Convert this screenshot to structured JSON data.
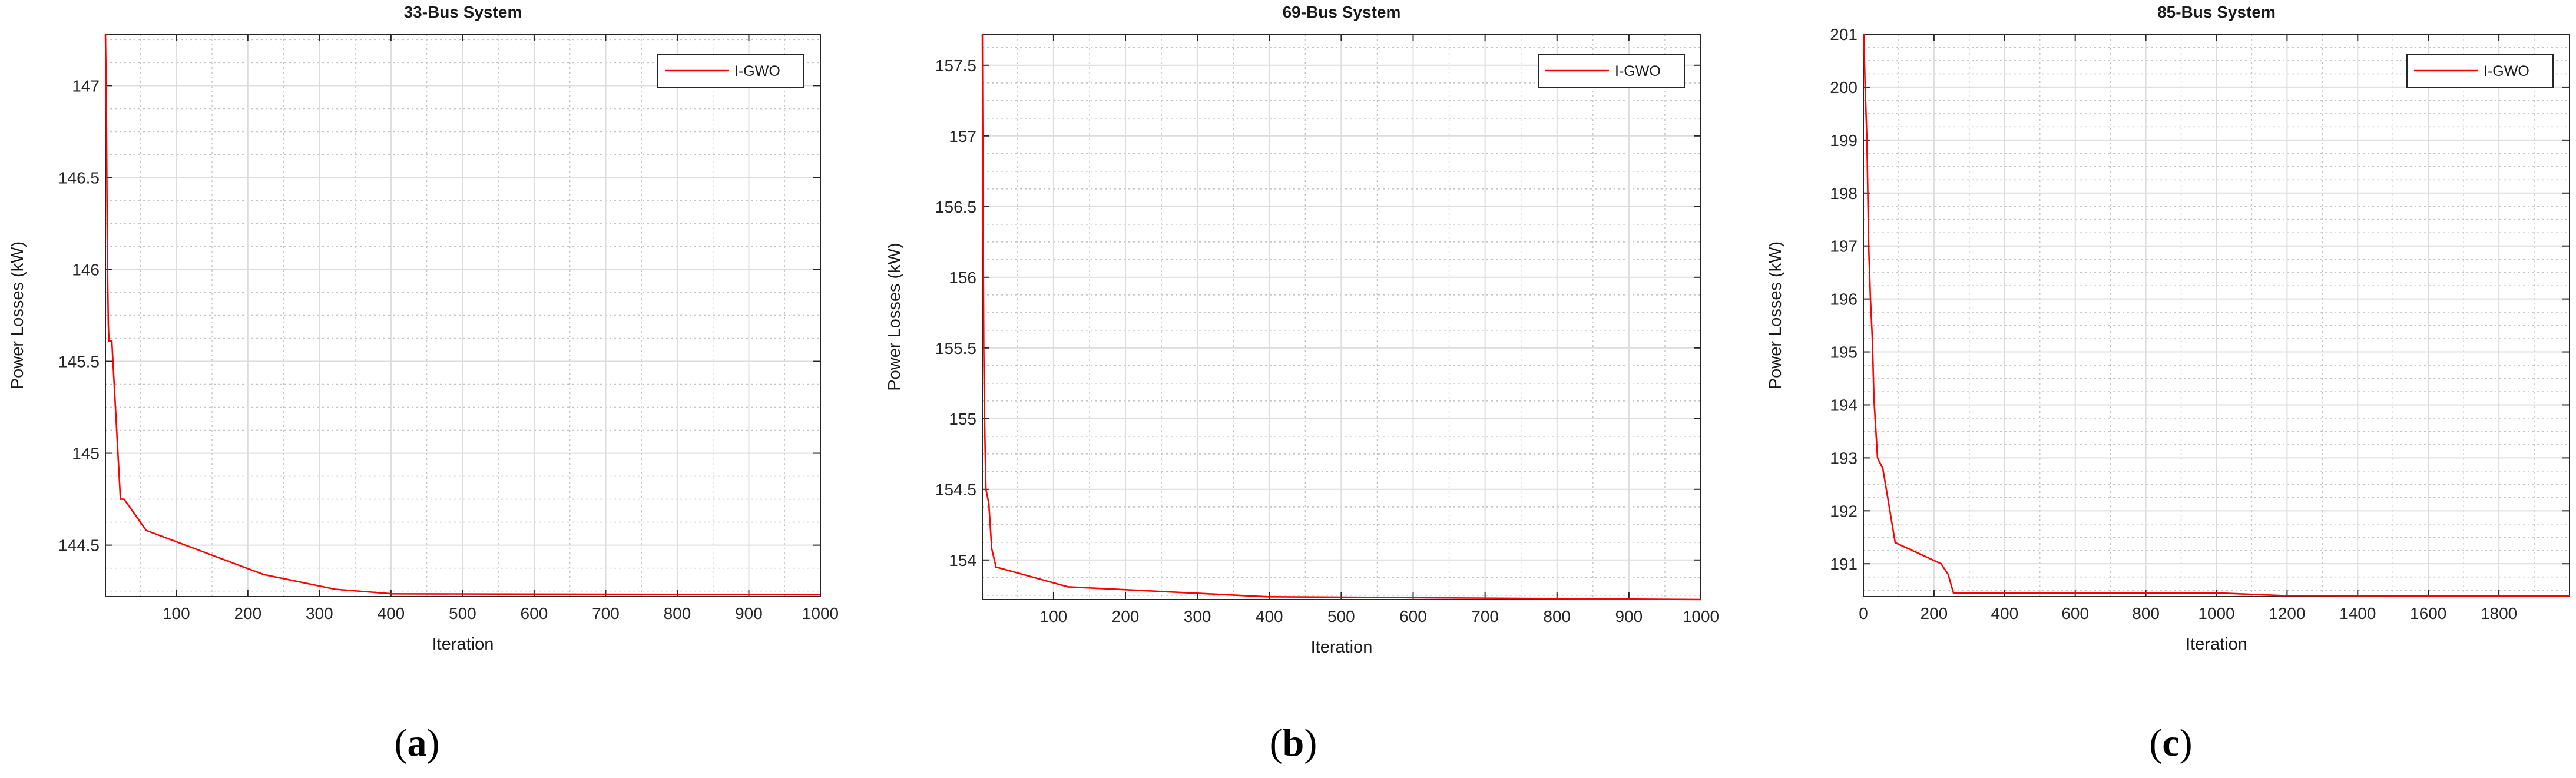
{
  "colors": {
    "series": "#ff0000",
    "grid_major": "#dcdcdc",
    "grid_minor": "#c4c4c4",
    "axis": "#262626"
  },
  "chart_data": [
    {
      "type": "line",
      "panel_label": "a",
      "title": "33-Bus System",
      "xlabel": "Iteration",
      "ylabel": "Power Losses (kW)",
      "xlim": [
        1,
        1000
      ],
      "ylim": [
        144.22,
        147.28
      ],
      "xticks": [
        100,
        200,
        300,
        400,
        500,
        600,
        700,
        800,
        900,
        1000
      ],
      "xtick_labels": [
        "100",
        "200",
        "300",
        "400",
        "500",
        "600",
        "700",
        "800",
        "900",
        "1000"
      ],
      "yticks": [
        144.5,
        145,
        145.5,
        146,
        146.5,
        147
      ],
      "ytick_labels": [
        "144.5",
        "145",
        "145.5",
        "146",
        "146.5",
        "147"
      ],
      "grid": true,
      "legend_position": "top-right",
      "series": [
        {
          "name": "I-GWO",
          "x": [
            1,
            2,
            3,
            4,
            5,
            6,
            8,
            10,
            22,
            27,
            38,
            58,
            222,
            322,
            402,
            1000
          ],
          "y": [
            147.28,
            147.0,
            146.5,
            146.0,
            145.7,
            145.61,
            145.61,
            145.61,
            144.75,
            144.75,
            144.69,
            144.58,
            144.34,
            144.26,
            144.235,
            144.23
          ]
        }
      ]
    },
    {
      "type": "line",
      "panel_label": "b",
      "title": "69-Bus System",
      "xlabel": "Iteration",
      "ylabel": "Power Losses (kW)",
      "xlim": [
        1,
        1000
      ],
      "ylim": [
        153.72,
        157.72
      ],
      "xticks": [
        100,
        200,
        300,
        400,
        500,
        600,
        700,
        800,
        900,
        1000
      ],
      "xtick_labels": [
        "100",
        "200",
        "300",
        "400",
        "500",
        "600",
        "700",
        "800",
        "900",
        "1000"
      ],
      "yticks": [
        154,
        154.5,
        155,
        155.5,
        156,
        156.5,
        157,
        157.5
      ],
      "ytick_labels": [
        "154",
        "154.5",
        "155",
        "155.5",
        "156",
        "156.5",
        "157",
        "157.5"
      ],
      "grid": true,
      "legend_position": "top-right",
      "series": [
        {
          "name": "I-GWO",
          "x": [
            1,
            2,
            3,
            4,
            6,
            10,
            14,
            20,
            120,
            395,
            1000
          ],
          "y": [
            157.72,
            156.5,
            155.5,
            155.0,
            154.5,
            154.4,
            154.08,
            153.95,
            153.81,
            153.74,
            153.72
          ]
        }
      ]
    },
    {
      "type": "line",
      "panel_label": "c",
      "title": "85-Bus System",
      "xlabel": "Iteration",
      "ylabel": "Power Losses (kW)",
      "xlim": [
        0,
        2000
      ],
      "ylim": [
        190.38,
        201.0
      ],
      "xticks": [
        0,
        200,
        400,
        600,
        800,
        1000,
        1200,
        1400,
        1600,
        1800
      ],
      "xtick_labels": [
        "0",
        "200",
        "400",
        "600",
        "800",
        "1000",
        "1200",
        "1400",
        "1600",
        "1800"
      ],
      "yticks": [
        191,
        192,
        193,
        194,
        195,
        196,
        197,
        198,
        199,
        200,
        201
      ],
      "ytick_labels": [
        "191",
        "192",
        "193",
        "194",
        "195",
        "196",
        "197",
        "198",
        "199",
        "200",
        "201"
      ],
      "grid": true,
      "legend_position": "top-right",
      "series": [
        {
          "name": "I-GWO",
          "x": [
            1,
            5,
            10,
            15,
            20,
            25,
            30,
            40,
            55,
            70,
            80,
            90,
            220,
            240,
            255,
            1000,
            1180,
            2000
          ],
          "y": [
            201.0,
            200.0,
            199.0,
            197.0,
            196.0,
            195.3,
            194.1,
            193.0,
            192.8,
            192.2,
            191.8,
            191.4,
            191.0,
            190.8,
            190.45,
            190.45,
            190.4,
            190.39
          ]
        }
      ]
    }
  ]
}
